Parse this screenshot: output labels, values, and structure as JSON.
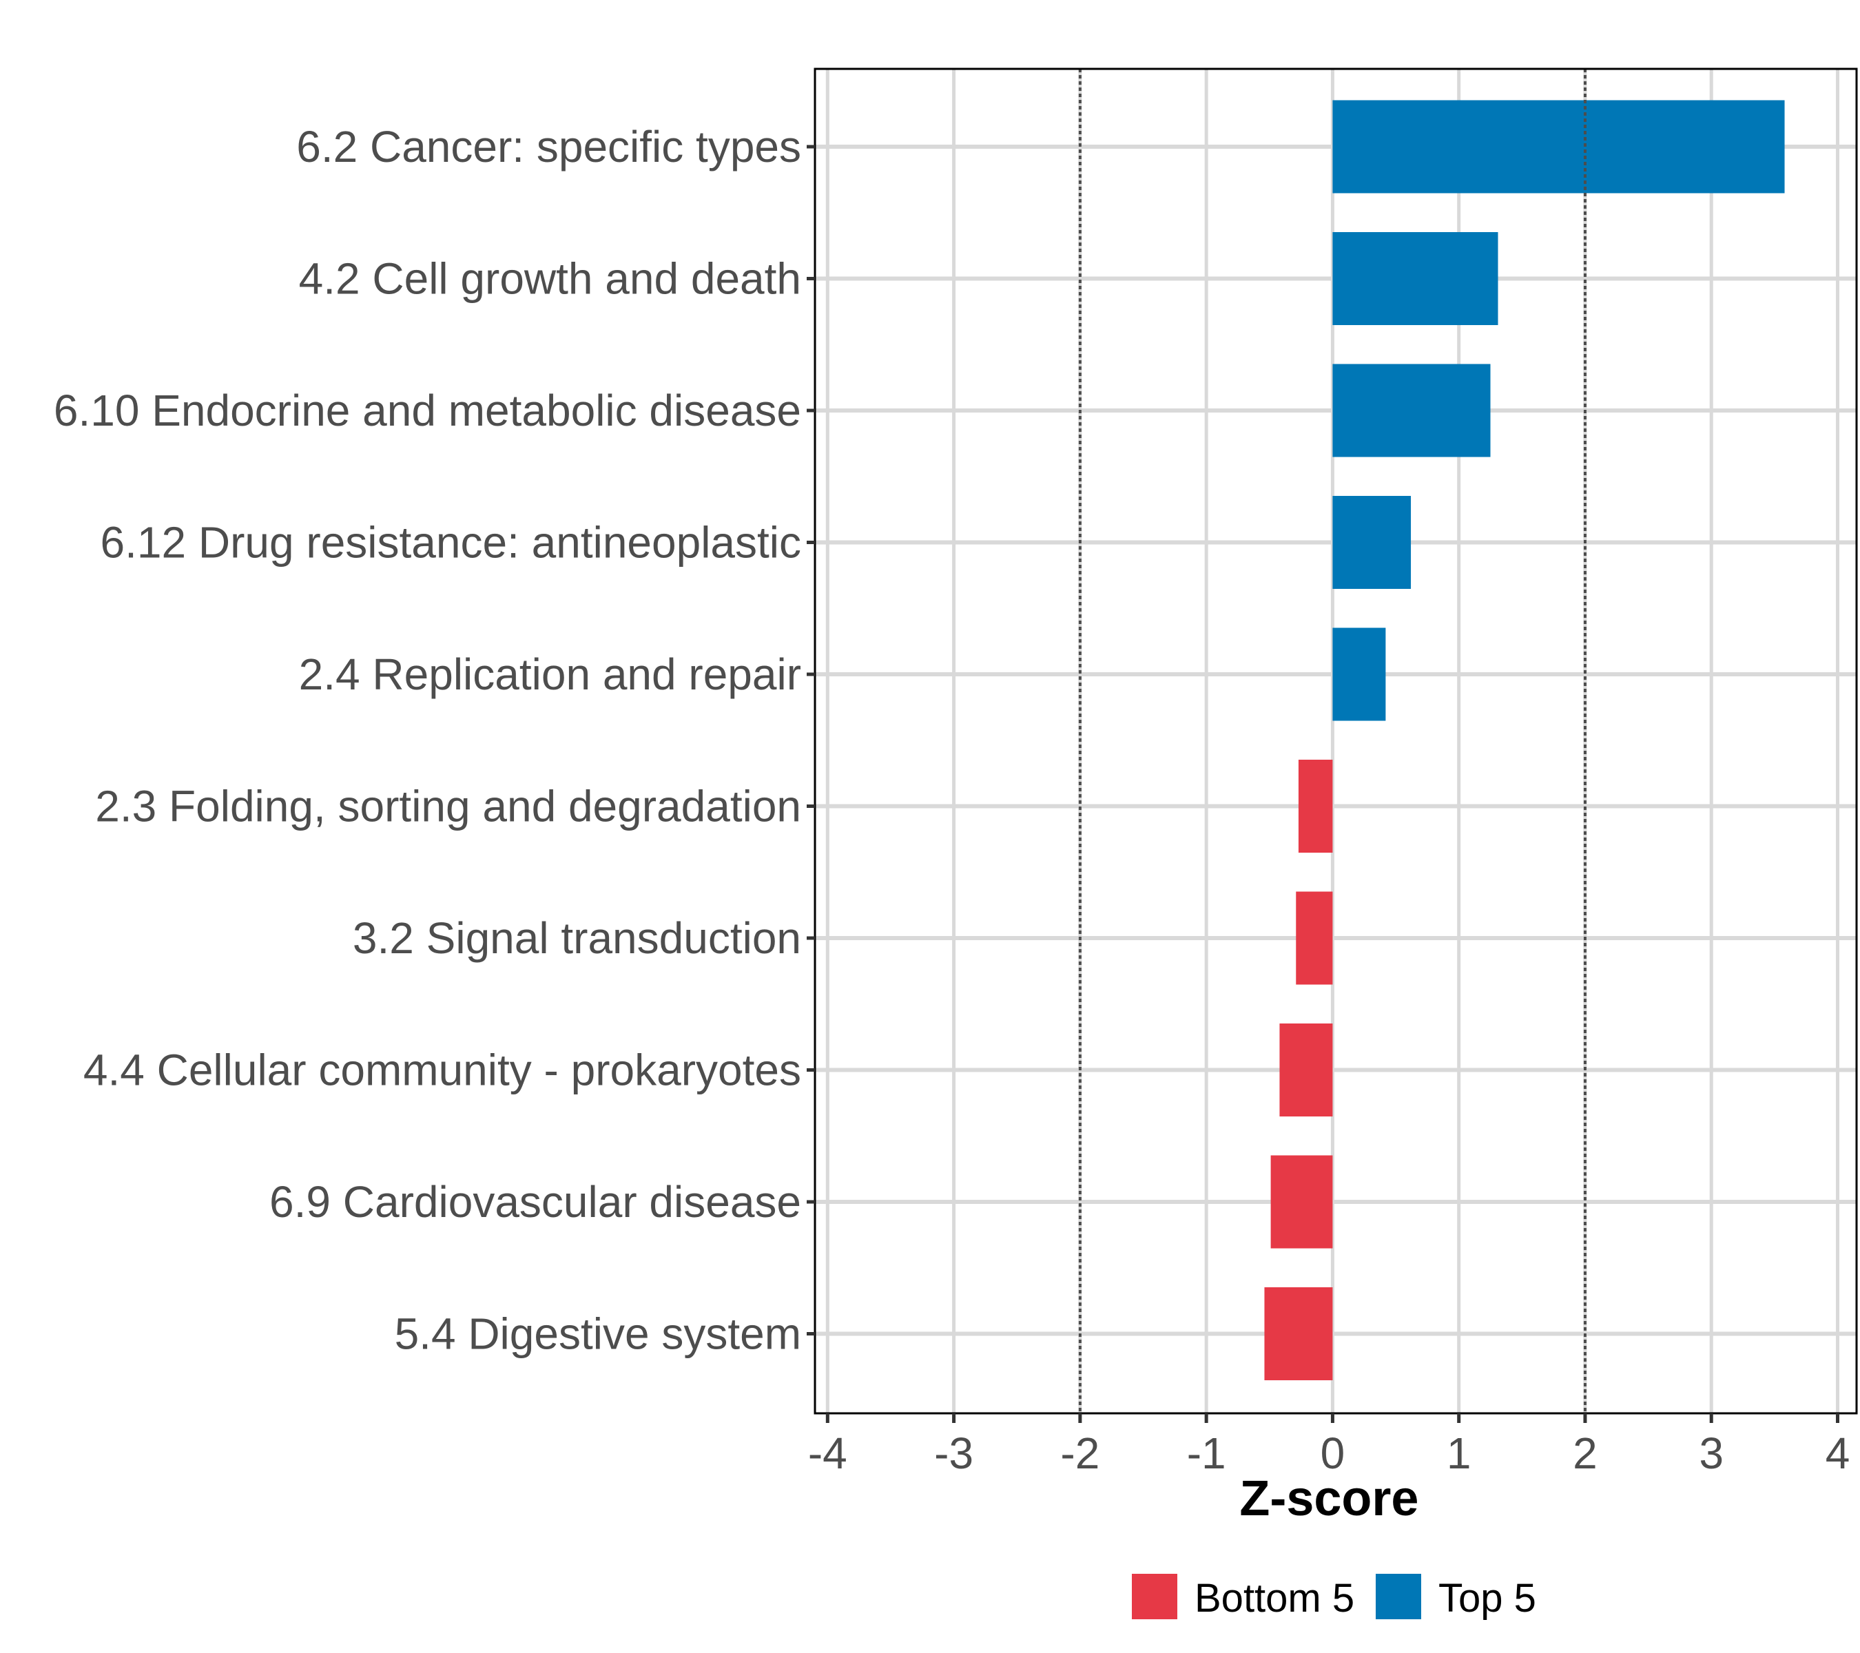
{
  "chart_data": {
    "type": "bar",
    "orientation": "horizontal",
    "title": "",
    "xlabel": "Z-score",
    "ylabel": "",
    "xlim": [
      -4.1,
      4.15
    ],
    "x_ticks": [
      -4,
      -3,
      -2,
      -1,
      0,
      1,
      2,
      3,
      4
    ],
    "x_tick_labels": [
      "-4",
      "-3",
      "-2",
      "-1",
      "0",
      "1",
      "2",
      "3",
      "4"
    ],
    "reference_lines": [
      {
        "x": -2,
        "style": "dotted"
      },
      {
        "x": 2,
        "style": "dotted"
      }
    ],
    "grid": true,
    "categories": [
      "6.2 Cancer: specific types",
      "4.2 Cell growth and death",
      "6.10 Endocrine and metabolic disease",
      "6.12 Drug resistance: antineoplastic",
      "2.4 Replication and repair",
      "2.3 Folding, sorting and degradation",
      "3.2 Signal transduction",
      "4.4 Cellular community - prokaryotes",
      "6.9 Cardiovascular disease",
      "5.4 Digestive system"
    ],
    "values": [
      3.58,
      1.31,
      1.25,
      0.62,
      0.42,
      -0.27,
      -0.29,
      -0.42,
      -0.49,
      -0.54
    ],
    "groups": [
      "Top 5",
      "Top 5",
      "Top 5",
      "Top 5",
      "Top 5",
      "Bottom 5",
      "Bottom 5",
      "Bottom 5",
      "Bottom 5",
      "Bottom 5"
    ],
    "legend": {
      "placement": "bottom",
      "entries": [
        {
          "label": "Bottom 5",
          "color": "#e63946"
        },
        {
          "label": "Top 5",
          "color": "#0077b6"
        }
      ]
    },
    "colors": {
      "Top 5": "#0077b6",
      "Bottom 5": "#e63946",
      "grid": "#d9d9d9",
      "reference_line": "#4d4d4d",
      "panel_border": "#000000"
    }
  }
}
